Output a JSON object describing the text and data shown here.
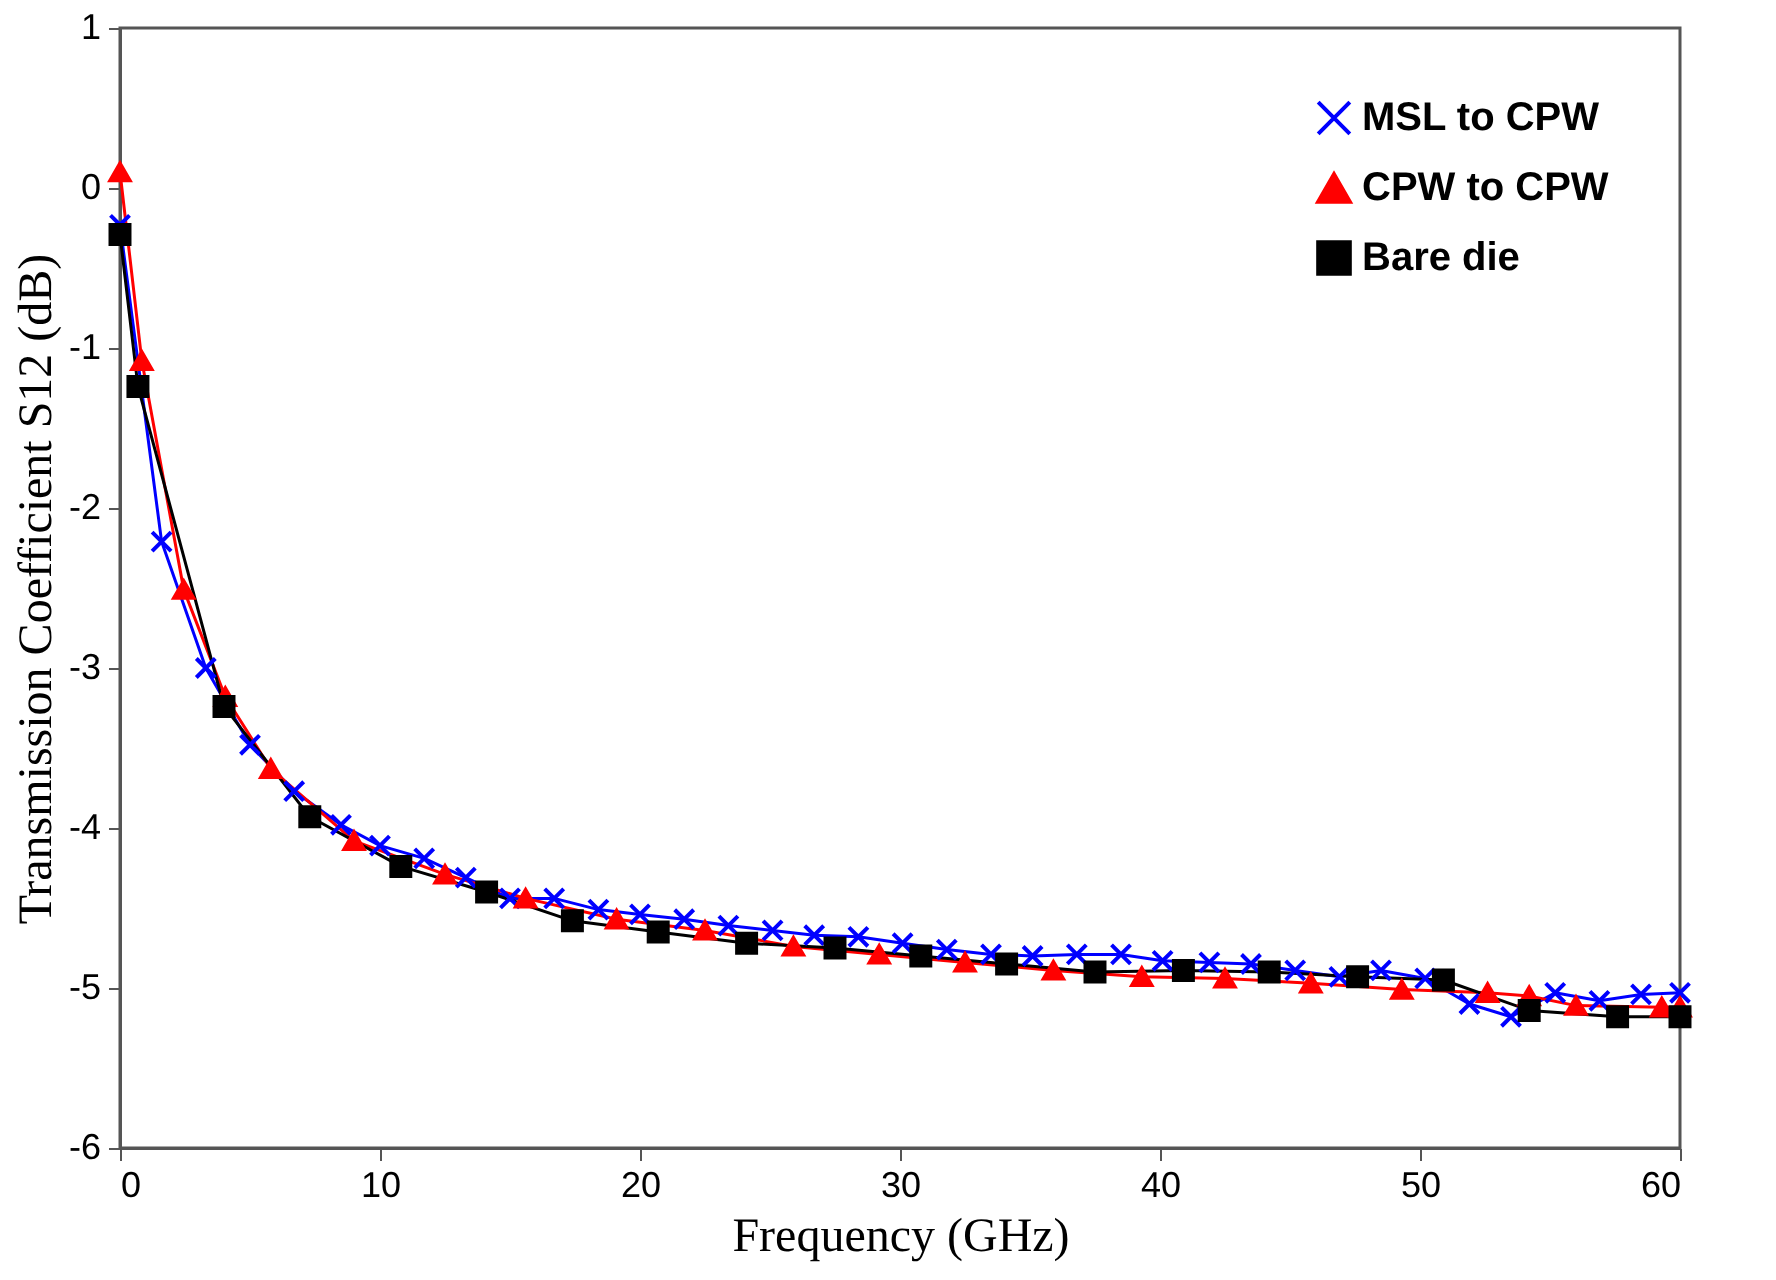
{
  "chart_data": {
    "type": "line",
    "xlabel": "Frequency   (GHz)",
    "ylabel": "Transmission Coefficient S12   (dB)",
    "xlim": [
      0,
      60
    ],
    "ylim": [
      -6,
      1
    ],
    "xticks": [
      0,
      10,
      20,
      30,
      40,
      50,
      60
    ],
    "yticks": [
      -6,
      -5,
      -4,
      -3,
      -2,
      -1,
      0,
      1
    ],
    "grid": false,
    "legend": "top right",
    "line_style": "solid",
    "series": [
      {
        "name": "MSL to CPW",
        "color": "#0000ff",
        "marker": "cross",
        "x": [
          0,
          1.6,
          3.3,
          5.0,
          6.7,
          8.5,
          10,
          11.7,
          13.3,
          15,
          16.7,
          18.4,
          20,
          21.7,
          23.4,
          25.1,
          26.7,
          28.4,
          30.1,
          31.8,
          33.5,
          35.1,
          36.8,
          38.5,
          40.1,
          41.9,
          43.5,
          45.2,
          46.9,
          48.5,
          50.2,
          51.9,
          53.5,
          55.2,
          56.9,
          58.5,
          60
        ],
        "values": [
          -0.23,
          -2.21,
          -3.0,
          -3.48,
          -3.77,
          -3.98,
          -4.11,
          -4.19,
          -4.31,
          -4.44,
          -4.44,
          -4.51,
          -4.54,
          -4.57,
          -4.61,
          -4.64,
          -4.67,
          -4.68,
          -4.72,
          -4.76,
          -4.79,
          -4.8,
          -4.79,
          -4.79,
          -4.83,
          -4.84,
          -4.85,
          -4.89,
          -4.93,
          -4.89,
          -4.94,
          -5.1,
          -5.18,
          -5.03,
          -5.08,
          -5.04,
          -5.03
        ]
      },
      {
        "name": "CPW to CPW",
        "color": "#ff0000",
        "marker": "triangle",
        "x": [
          0,
          0.84,
          2.45,
          4.05,
          5.8,
          9.0,
          12.5,
          15.6,
          19.1,
          22.5,
          25.9,
          29.2,
          32.5,
          35.9,
          39.3,
          42.5,
          45.8,
          49.3,
          52.6,
          54.2,
          56,
          59.3,
          60
        ],
        "values": [
          0.1,
          -1.08,
          -2.51,
          -3.18,
          -3.63,
          -4.08,
          -4.29,
          -4.44,
          -4.57,
          -4.64,
          -4.74,
          -4.79,
          -4.84,
          -4.89,
          -4.93,
          -4.94,
          -4.97,
          -5.01,
          -5.03,
          -5.05,
          -5.11,
          -5.12,
          -5.12
        ]
      },
      {
        "name": "Bare die",
        "color": "#000000",
        "marker": "square",
        "x": [
          0,
          0.69,
          4.0,
          7.3,
          10.8,
          14.1,
          17.4,
          20.7,
          24.1,
          27.5,
          30.8,
          34.1,
          37.5,
          40.9,
          44.2,
          47.6,
          50.9,
          54.2,
          57.6,
          60
        ],
        "values": [
          -0.29,
          -1.24,
          -3.24,
          -3.93,
          -4.24,
          -4.4,
          -4.58,
          -4.65,
          -4.72,
          -4.75,
          -4.8,
          -4.85,
          -4.9,
          -4.89,
          -4.9,
          -4.93,
          -4.95,
          -5.14,
          -5.18,
          -5.18
        ]
      }
    ]
  }
}
